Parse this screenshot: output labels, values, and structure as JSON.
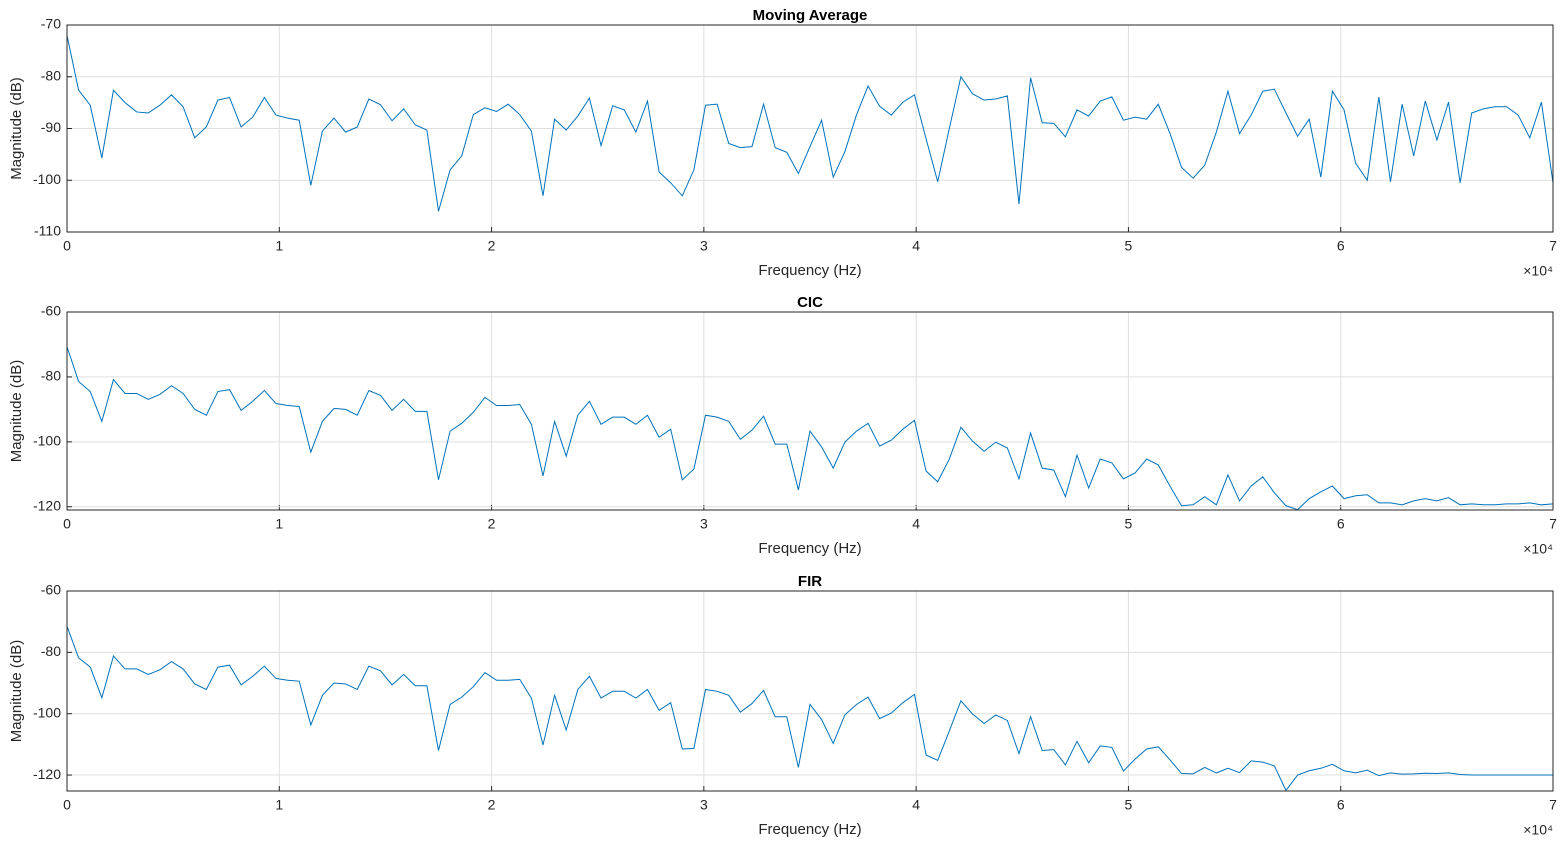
{
  "chart_data": [
    {
      "type": "line",
      "title": "Moving Average",
      "xlabel": "Frequency (Hz)",
      "ylabel": "Magnitude (dB)",
      "x_exponent_label": "×10⁴",
      "color": "#0072bd",
      "grid": true,
      "xlim": [
        0,
        7
      ],
      "xticks": [
        0,
        1,
        2,
        3,
        4,
        5,
        6,
        7
      ],
      "ylim": [
        -110,
        -70
      ],
      "yticks": [
        -110,
        -100,
        -90,
        -80,
        -70
      ],
      "x": [
        0,
        0.0547,
        0.1094,
        0.1641,
        0.2188,
        0.2734,
        0.3281,
        0.3828,
        0.4375,
        0.4922,
        0.5469,
        0.6016,
        0.6563,
        0.7109,
        0.7656,
        0.8203,
        0.875,
        0.9297,
        0.9844,
        1.0391,
        1.0938,
        1.1484,
        1.2031,
        1.2578,
        1.3125,
        1.3672,
        1.4219,
        1.4766,
        1.5313,
        1.5859,
        1.6406,
        1.6953,
        1.75,
        1.8047,
        1.8594,
        1.9141,
        1.9688,
        2.0234,
        2.0781,
        2.1328,
        2.1875,
        2.2422,
        2.2969,
        2.3516,
        2.4063,
        2.4609,
        2.5156,
        2.5703,
        2.625,
        2.6797,
        2.7344,
        2.7891,
        2.8438,
        2.8984,
        2.9531,
        3.0078,
        3.0625,
        3.1172,
        3.1719,
        3.2266,
        3.2813,
        3.3359,
        3.3906,
        3.4453,
        3.5,
        3.5547,
        3.6094,
        3.6641,
        3.7188,
        3.7734,
        3.8281,
        3.8828,
        3.9375,
        3.9922,
        4.0469,
        4.1016,
        4.1563,
        4.2109,
        4.2656,
        4.3203,
        4.375,
        4.4297,
        4.4844,
        4.5391,
        4.5938,
        4.6484,
        4.7031,
        4.7578,
        4.8125,
        4.8672,
        4.9219,
        4.9766,
        5.0313,
        5.0859,
        5.1406,
        5.1953,
        5.25,
        5.3047,
        5.3594,
        5.4141,
        5.4688,
        5.5234,
        5.5781,
        5.6328,
        5.6875,
        5.7422,
        5.7969,
        5.8516,
        5.9063,
        5.9609,
        6.0156,
        6.0703,
        6.125,
        6.1797,
        6.2344,
        6.2891,
        6.3438,
        6.3984,
        6.4531,
        6.5078,
        6.5625,
        6.6172,
        6.6719,
        6.7266,
        6.7813,
        6.8359,
        6.8906,
        6.9453,
        7.0
      ],
      "values": [
        -72,
        -82.6,
        -85.5,
        -95.7,
        -82.6,
        -85,
        -86.8,
        -87,
        -85.5,
        -83.5,
        -85.8,
        -91.8,
        -89.7,
        -84.5,
        -84,
        -89.7,
        -87.8,
        -84,
        -87.4,
        -88,
        -88.4,
        -101,
        -90.5,
        -88,
        -90.7,
        -89.7,
        -84.3,
        -85.4,
        -88.5,
        -86.2,
        -89.3,
        -90.3,
        -106,
        -98,
        -95.3,
        -87.3,
        -86,
        -86.7,
        -85.3,
        -87.3,
        -90.5,
        -103,
        -88.2,
        -90.3,
        -87.6,
        -84.1,
        -93.3,
        -85.6,
        -86.4,
        -90.7,
        -84.7,
        -98.4,
        -100.5,
        -103,
        -98,
        -85.5,
        -85.3,
        -92.9,
        -93.7,
        -93.5,
        -85.3,
        -93.7,
        -94.6,
        -98.7,
        -93.5,
        -88.4,
        -99.4,
        -94.5,
        -87.4,
        -81.8,
        -85.7,
        -87.4,
        -84.9,
        -83.5,
        -92,
        -100.3,
        -90,
        -80,
        -83.3,
        -84.5,
        -84.3,
        -83.7,
        -104.6,
        -80.2,
        -88.9,
        -89,
        -91.6,
        -86.4,
        -87.6,
        -84.7,
        -83.9,
        -88.4,
        -87.8,
        -88.2,
        -85.3,
        -90.9,
        -97.5,
        -99.6,
        -97.1,
        -90.7,
        -82.8,
        -91,
        -87.4,
        -82.8,
        -82.4,
        -87,
        -91.5,
        -88.2,
        -99.4,
        -82.8,
        -86.4,
        -96.7,
        -100,
        -83.9,
        -100.3,
        -85.3,
        -95.3,
        -84.7,
        -92.2,
        -84.9,
        -100.5,
        -87,
        -86.2,
        -85.8,
        -85.8,
        -87.4,
        -91.8,
        -84.9,
        -100.5
      ]
    },
    {
      "type": "line",
      "title": "CIC",
      "xlabel": "Frequency (Hz)",
      "ylabel": "Magnitude (dB)",
      "x_exponent_label": "×10⁴",
      "color": "#0072bd",
      "grid": true,
      "xlim": [
        0,
        7
      ],
      "xticks": [
        0,
        1,
        2,
        3,
        4,
        5,
        6,
        7
      ],
      "ylim": [
        -121,
        -60
      ],
      "yticks": [
        -120,
        -100,
        -80,
        -60
      ],
      "x": [
        0,
        0.0547,
        0.1094,
        0.1641,
        0.2188,
        0.2734,
        0.3281,
        0.3828,
        0.4375,
        0.4922,
        0.5469,
        0.6016,
        0.6563,
        0.7109,
        0.7656,
        0.8203,
        0.875,
        0.9297,
        0.9844,
        1.0391,
        1.0938,
        1.1484,
        1.2031,
        1.2578,
        1.3125,
        1.3672,
        1.4219,
        1.4766,
        1.5313,
        1.5859,
        1.6406,
        1.6953,
        1.75,
        1.8047,
        1.8594,
        1.9141,
        1.9688,
        2.0234,
        2.0781,
        2.1328,
        2.1875,
        2.2422,
        2.2969,
        2.3516,
        2.4063,
        2.4609,
        2.5156,
        2.5703,
        2.625,
        2.6797,
        2.7344,
        2.7891,
        2.8438,
        2.8984,
        2.9531,
        3.0078,
        3.0625,
        3.1172,
        3.1719,
        3.2266,
        3.2813,
        3.3359,
        3.3906,
        3.4453,
        3.5,
        3.5547,
        3.6094,
        3.6641,
        3.7188,
        3.7734,
        3.8281,
        3.8828,
        3.9375,
        3.9922,
        4.0469,
        4.1016,
        4.1563,
        4.2109,
        4.2656,
        4.3203,
        4.375,
        4.4297,
        4.4844,
        4.5391,
        4.5938,
        4.6484,
        4.7031,
        4.7578,
        4.8125,
        4.8672,
        4.9219,
        4.9766,
        5.0313,
        5.0859,
        5.1406,
        5.1953,
        5.25,
        5.3047,
        5.3594,
        5.4141,
        5.4688,
        5.5234,
        5.5781,
        5.6328,
        5.6875,
        5.7422,
        5.7969,
        5.8516,
        5.9063,
        5.9609,
        6.0156,
        6.0703,
        6.125,
        6.1797,
        6.2344,
        6.2891,
        6.3438,
        6.3984,
        6.4531,
        6.5078,
        6.5625,
        6.6172,
        6.6719,
        6.7266,
        6.7813,
        6.8359,
        6.8906,
        6.9453,
        7.0
      ],
      "values": [
        -70.7,
        -81.4,
        -84.5,
        -93.7,
        -80.8,
        -85.1,
        -85.1,
        -86.9,
        -85.4,
        -82.7,
        -85.1,
        -90,
        -91.8,
        -84.5,
        -83.9,
        -90.3,
        -87.5,
        -84.2,
        -88.2,
        -88.8,
        -89.1,
        -103.2,
        -93.7,
        -89.7,
        -90,
        -91.8,
        -84.2,
        -85.7,
        -90.3,
        -86.9,
        -90.6,
        -90.6,
        -111.7,
        -96.7,
        -94.3,
        -90.9,
        -86.3,
        -88.8,
        -88.8,
        -88.5,
        -94.6,
        -110.5,
        -93.7,
        -104.4,
        -91.8,
        -87.5,
        -94.6,
        -92.4,
        -92.4,
        -94.6,
        -91.8,
        -98.6,
        -96.1,
        -111.7,
        -108.4,
        -91.8,
        -92.4,
        -93.7,
        -99.2,
        -96.4,
        -92.1,
        -100.7,
        -100.7,
        -114.8,
        -96.7,
        -101.6,
        -108.1,
        -100.1,
        -96.7,
        -94.3,
        -101.3,
        -99.5,
        -96.1,
        -93.4,
        -109,
        -112.3,
        -105.3,
        -95.5,
        -99.8,
        -102.9,
        -100.1,
        -101.9,
        -111.4,
        -97.3,
        -108.1,
        -108.7,
        -116.9,
        -104.1,
        -114.2,
        -105.3,
        -106.5,
        -111.4,
        -109.6,
        -105.3,
        -107.1,
        -113.6,
        -119.7,
        -119.4,
        -116.9,
        -119.4,
        -110.2,
        -118.2,
        -113.6,
        -110.8,
        -115.7,
        -119.7,
        -120.9,
        -117.5,
        -115.4,
        -113.6,
        -117.5,
        -116.6,
        -116.3,
        -118.8,
        -118.8,
        -119.4,
        -118.2,
        -117.5,
        -118.2,
        -117.2,
        -119.4,
        -119.1,
        -119.4,
        -119.4,
        -119.1,
        -119.1,
        -118.8,
        -119.4,
        -119.1
      ]
    },
    {
      "type": "line",
      "title": "FIR",
      "xlabel": "Frequency (Hz)",
      "ylabel": "Magnitude (dB)",
      "x_exponent_label": "×10⁴",
      "color": "#0072bd",
      "grid": true,
      "xlim": [
        0,
        7
      ],
      "xticks": [
        0,
        1,
        2,
        3,
        4,
        5,
        6,
        7
      ],
      "ylim": [
        -125.2,
        -60
      ],
      "yticks": [
        -120,
        -100,
        -80,
        -60
      ],
      "x": [
        0,
        0.0547,
        0.1094,
        0.1641,
        0.2188,
        0.2734,
        0.3281,
        0.3828,
        0.4375,
        0.4922,
        0.5469,
        0.6016,
        0.6563,
        0.7109,
        0.7656,
        0.8203,
        0.875,
        0.9297,
        0.9844,
        1.0391,
        1.0938,
        1.1484,
        1.2031,
        1.2578,
        1.3125,
        1.3672,
        1.4219,
        1.4766,
        1.5313,
        1.5859,
        1.6406,
        1.6953,
        1.75,
        1.8047,
        1.8594,
        1.9141,
        1.9688,
        2.0234,
        2.0781,
        2.1328,
        2.1875,
        2.2422,
        2.2969,
        2.3516,
        2.4063,
        2.4609,
        2.5156,
        2.5703,
        2.625,
        2.6797,
        2.7344,
        2.7891,
        2.8438,
        2.8984,
        2.9531,
        3.0078,
        3.0625,
        3.1172,
        3.1719,
        3.2266,
        3.2813,
        3.3359,
        3.3906,
        3.4453,
        3.5,
        3.5547,
        3.6094,
        3.6641,
        3.7188,
        3.7734,
        3.8281,
        3.8828,
        3.9375,
        3.9922,
        4.0469,
        4.1016,
        4.1563,
        4.2109,
        4.2656,
        4.3203,
        4.375,
        4.4297,
        4.4844,
        4.5391,
        4.5938,
        4.6484,
        4.7031,
        4.7578,
        4.8125,
        4.8672,
        4.9219,
        4.9766,
        5.0313,
        5.0859,
        5.1406,
        5.1953,
        5.25,
        5.3047,
        5.3594,
        5.4141,
        5.4688,
        5.5234,
        5.5781,
        5.6328,
        5.6875,
        5.7422,
        5.7969,
        5.8516,
        5.9063,
        5.9609,
        6.0156,
        6.0703,
        6.125,
        6.1797,
        6.2344,
        6.2891,
        6.3438,
        6.3984,
        6.4531,
        6.5078,
        6.5625,
        6.6172,
        6.6719,
        6.7266,
        6.7813,
        6.8359,
        6.8906,
        6.9453,
        7.0
      ],
      "values": [
        -71.5,
        -81.8,
        -84.8,
        -94.8,
        -81.2,
        -85.4,
        -85.4,
        -87.2,
        -85.7,
        -83,
        -85.4,
        -90.3,
        -92.1,
        -84.8,
        -84.2,
        -90.6,
        -87.8,
        -84.5,
        -88.5,
        -89.1,
        -89.4,
        -103.7,
        -94,
        -90,
        -90.3,
        -92.1,
        -84.5,
        -86,
        -90.6,
        -87.2,
        -90.9,
        -90.9,
        -112,
        -97,
        -94.6,
        -91.2,
        -86.6,
        -89.1,
        -89.1,
        -88.8,
        -94.9,
        -110.2,
        -94,
        -105.3,
        -92.1,
        -87.8,
        -94.9,
        -92.7,
        -92.7,
        -94.9,
        -92.1,
        -98.9,
        -96.4,
        -111.5,
        -111.3,
        -92.1,
        -92.7,
        -94,
        -99.5,
        -96.7,
        -92.4,
        -101,
        -101,
        -117.5,
        -97,
        -101.9,
        -109.7,
        -100.4,
        -97,
        -94.6,
        -101.6,
        -99.8,
        -96.4,
        -93.7,
        -113.5,
        -115.2,
        -105.6,
        -95.8,
        -100.1,
        -103.2,
        -100.4,
        -102.2,
        -113,
        -101,
        -112,
        -111.7,
        -116.7,
        -109,
        -116,
        -110.5,
        -111,
        -118.7,
        -114.8,
        -111.5,
        -110.8,
        -115,
        -119.5,
        -119.6,
        -117.5,
        -119.3,
        -117.8,
        -119.2,
        -115.4,
        -115.8,
        -117,
        -125,
        -120,
        -118.6,
        -117.8,
        -116.5,
        -118.6,
        -119.3,
        -118.4,
        -120.2,
        -119.3,
        -119.7,
        -119.6,
        -119.4,
        -119.5,
        -119.3,
        -119.8,
        -120,
        -120,
        -120,
        -120,
        -120,
        -120,
        -120,
        -120
      ]
    }
  ]
}
